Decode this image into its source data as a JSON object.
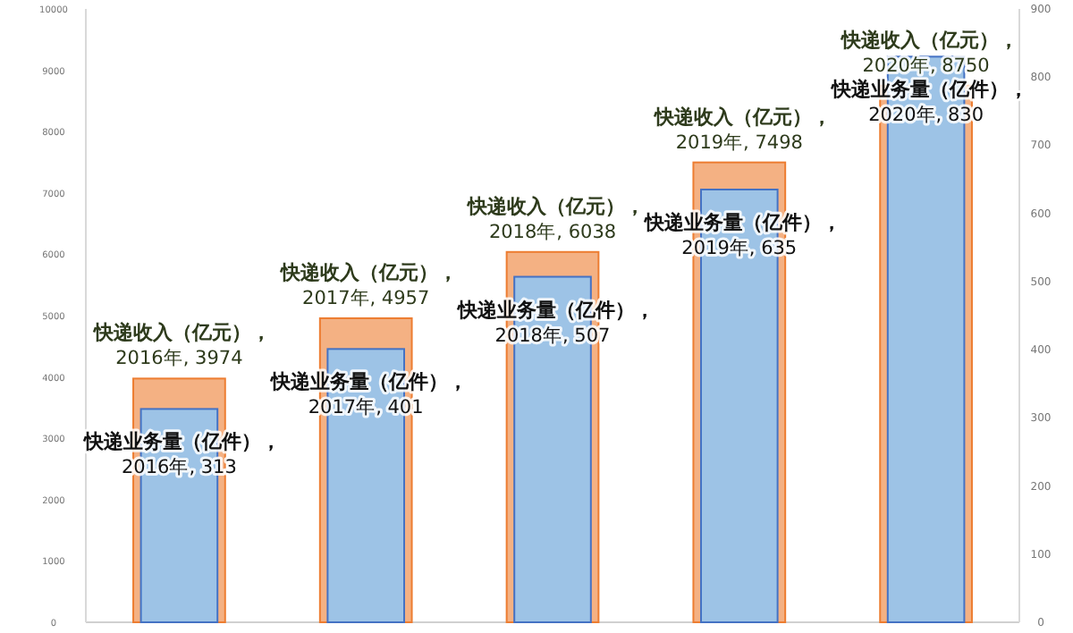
{
  "chart_data": {
    "type": "bar",
    "categories": [
      null,
      null,
      null,
      null,
      null
    ],
    "ylim": [
      0,
      10000
    ],
    "yticks": [
      0,
      1000,
      2000,
      3000,
      4000,
      5000,
      6000,
      7000,
      8000,
      9000,
      10000
    ],
    "y2lim": [
      0,
      900
    ],
    "y2ticks": [
      0,
      100,
      200,
      300,
      400,
      500,
      600,
      700,
      800,
      900
    ],
    "series": [
      {
        "color": "#f4b183",
        "values": [
          3974,
          4957,
          6038,
          7498,
          8750
        ],
        "value_labels": [
          "快递收入（亿元），\n2016年, 3974",
          "快递收入（亿元），\n2017年, 4957",
          "快递收入（亿元），\n2018年, 6038",
          "快递收入（亿元），\n2019年, 7498",
          "快递收入（亿元），\n2020年, 8750"
        ]
      },
      {
        "color": "#9dc3e6",
        "axis": "y2",
        "values": [
          313,
          401,
          507,
          635,
          830
        ],
        "value_labels": [
          "快递业务量（亿件），\n2016年, 313",
          "快递业务量（亿件），\n2017年, 401",
          "快递业务量（亿件），\n2018年, 507",
          "快递业务量（亿件），\n2019年, 635",
          "快递业务量（亿件），\n2020年, 830"
        ]
      }
    ]
  }
}
